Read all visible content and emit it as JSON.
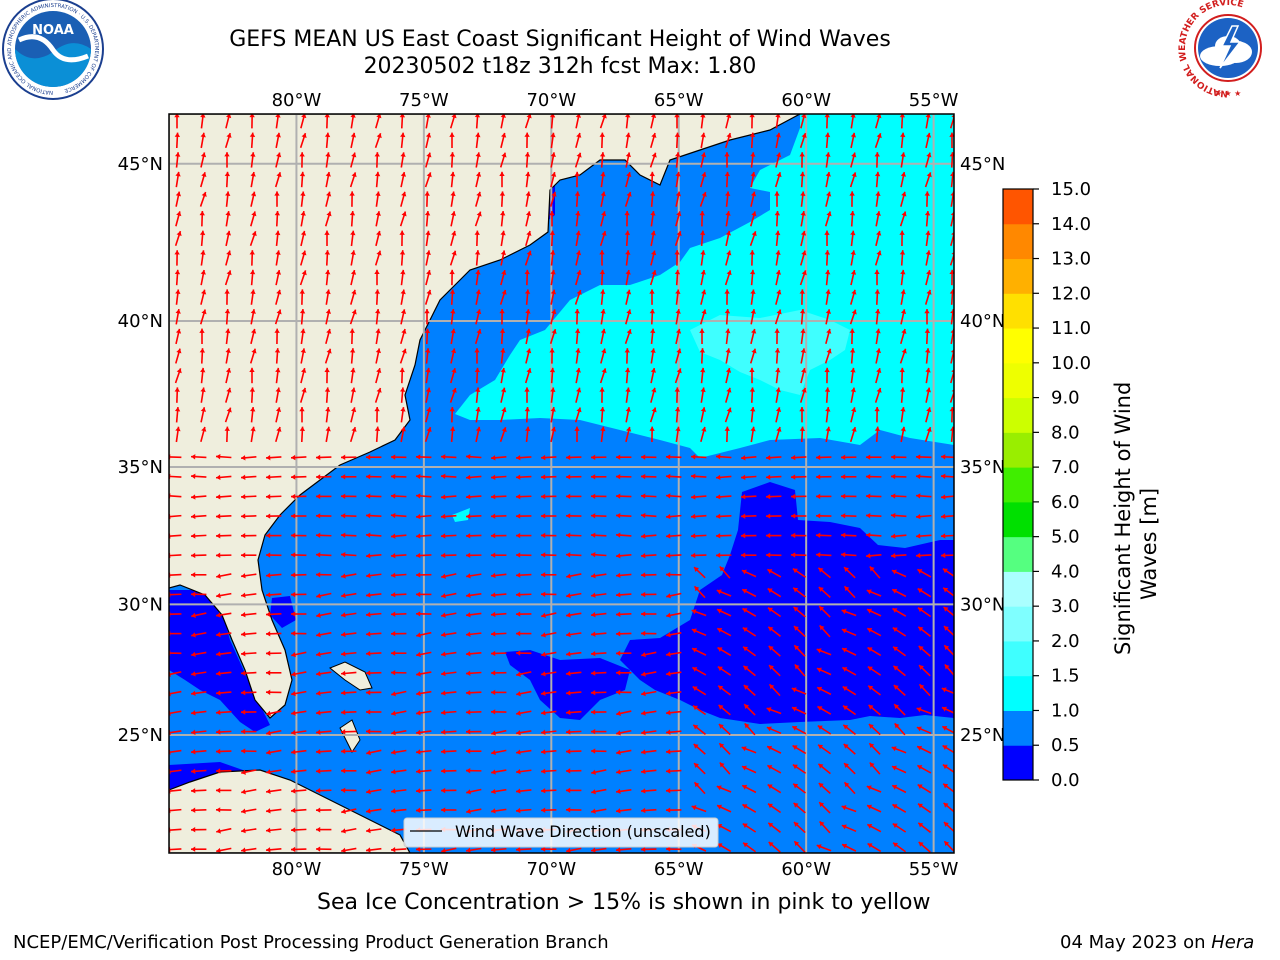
{
  "title": {
    "line1": "GEFS MEAN US East Coast Significant Height of Wind Waves",
    "line2": "20230502 t18z 312h fcst    Max: 1.80"
  },
  "logos": {
    "noaa": {
      "text": "NOAA",
      "ring_text": "NATIONAL OCEANIC AND ATMOSPHERIC ADMINISTRATION · U.S. DEPARTMENT OF COMMERCE"
    },
    "nws": {
      "ring_text": "NATIONAL WEATHER SERVICE"
    }
  },
  "map": {
    "lon_range": [
      -85,
      -54.2
    ],
    "lat_range": [
      20.3,
      46.5
    ],
    "lon_ticks": [
      "80°W",
      "75°W",
      "70°W",
      "65°W",
      "60°W",
      "55°W"
    ],
    "lat_ticks": [
      "45°N",
      "40°N",
      "35°N",
      "30°N",
      "25°N"
    ],
    "lon_values": [
      -80,
      -75,
      -70,
      -65,
      -60,
      -55
    ],
    "lat_values": [
      45,
      40,
      35,
      30,
      25
    ],
    "legend_label": "Wind Wave Direction (unscaled)",
    "colors": {
      "land": "#efeedd",
      "lt05": "#0000ff",
      "lt10": "#0080ff",
      "lt15": "#00ffff",
      "lt20": "#3fffff",
      "arrow": "#ff0000",
      "grid": "#b0b0b0"
    }
  },
  "colorbar": {
    "label": "Significant Height of Wind Waves [m]",
    "label_line1": "Significant Height of Wind",
    "label_line2": "Waves [m]",
    "ticks": [
      "15.0",
      "14.0",
      "13.0",
      "12.0",
      "11.0",
      "10.0",
      "9.0",
      "8.0",
      "7.0",
      "6.0",
      "5.0",
      "4.0",
      "3.0",
      "2.0",
      "1.5",
      "1.0",
      "0.5",
      "0.0"
    ],
    "colors": [
      "#0000ff",
      "#0080ff",
      "#00ffff",
      "#3fffff",
      "#7fffff",
      "#aaffff",
      "#55ff80",
      "#00e000",
      "#40ee00",
      "#99ee00",
      "#ccff00",
      "#eeff00",
      "#ffff00",
      "#ffe000",
      "#ffb000",
      "#ff8800",
      "#ff5500",
      "#ff2200",
      "#ff0000"
    ]
  },
  "notes": {
    "sea_ice": "Sea Ice Concentration > 15% is shown in pink to yellow",
    "org": "NCEP/EMC/Verification Post Processing Product Generation Branch",
    "date": "04 May 2023 on ",
    "host": "Hera"
  }
}
